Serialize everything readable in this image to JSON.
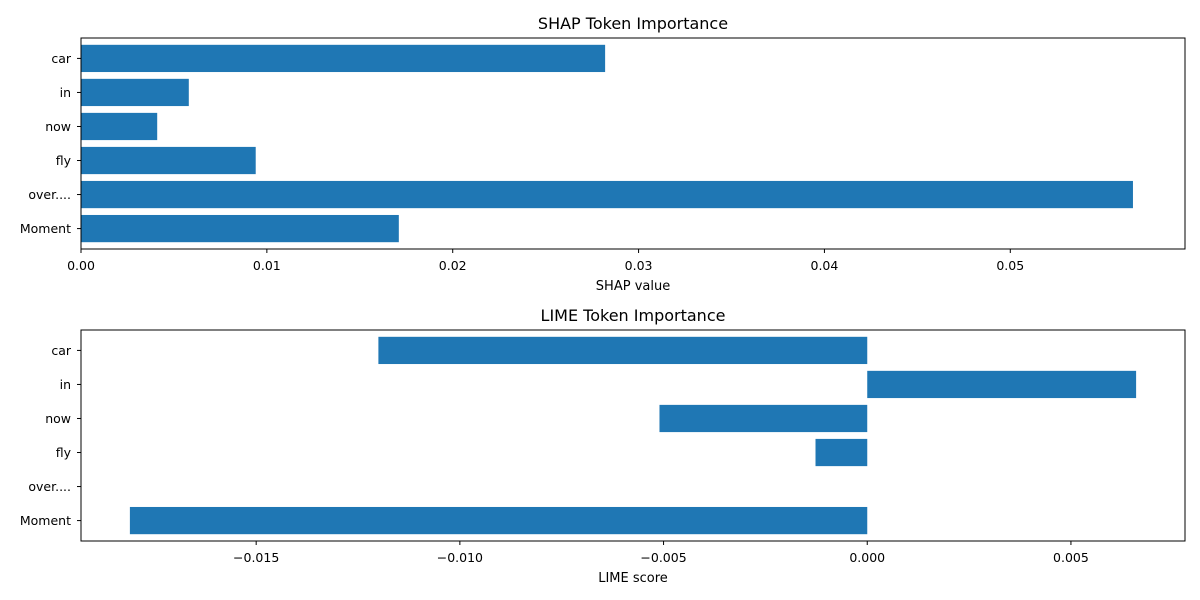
{
  "chart_data": [
    {
      "type": "bar",
      "orientation": "horizontal",
      "title": "SHAP Token Importance",
      "xlabel": "SHAP value",
      "ylabel": "",
      "categories": [
        "car",
        "in",
        "now",
        "fly",
        "over....",
        "Moment"
      ],
      "values": [
        0.0282,
        0.0058,
        0.0041,
        0.0094,
        0.0566,
        0.0171
      ],
      "xlim": [
        0,
        0.0594
      ],
      "xticks": [
        0.0,
        0.01,
        0.02,
        0.03,
        0.04,
        0.05
      ],
      "xtick_labels": [
        "0.00",
        "0.01",
        "0.02",
        "0.03",
        "0.04",
        "0.05"
      ],
      "grid": false,
      "color": "#1f77b4"
    },
    {
      "type": "bar",
      "orientation": "horizontal",
      "title": "LIME Token Importance",
      "xlabel": "LIME score",
      "ylabel": "",
      "categories": [
        "car",
        "in",
        "now",
        "fly",
        "over....",
        "Moment"
      ],
      "values": [
        -0.012,
        0.0066,
        -0.0051,
        -0.00127,
        0.0,
        -0.0181
      ],
      "xlim": [
        -0.0193,
        0.0078
      ],
      "xticks": [
        -0.015,
        -0.01,
        -0.005,
        0.0,
        0.005
      ],
      "xtick_labels": [
        "−0.015",
        "−0.010",
        "−0.005",
        "0.000",
        "0.005"
      ],
      "grid": false,
      "color": "#1f77b4"
    }
  ]
}
